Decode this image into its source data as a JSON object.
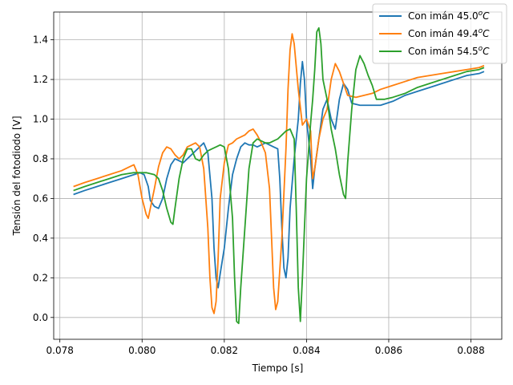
{
  "chart_data": {
    "type": "line",
    "xlabel": "Tiempo [s]",
    "ylabel": "Tensión del fotodiodo [V]",
    "xlim": [
      0.07785,
      0.08875
    ],
    "ylim": [
      -0.11,
      1.54
    ],
    "grid": true,
    "legend_position": "top-right",
    "x_ticks": [
      0.078,
      0.08,
      0.082,
      0.084,
      0.086,
      0.088
    ],
    "x_tick_labels": [
      "0.078",
      "0.080",
      "0.082",
      "0.084",
      "0.086",
      "0.088"
    ],
    "y_ticks": [
      0.0,
      0.2,
      0.4,
      0.6,
      0.8,
      1.0,
      1.2,
      1.4
    ],
    "y_tick_labels": [
      "0.0",
      "0.2",
      "0.4",
      "0.6",
      "0.8",
      "1.0",
      "1.2",
      "1.4"
    ],
    "series": [
      {
        "name": "Con imán 45.0",
        "name_sup": "o",
        "name_unit": "C",
        "color": "#1f77b4",
        "points": [
          [
            0.07833,
            0.62
          ],
          [
            0.0786,
            0.64
          ],
          [
            0.0789,
            0.66
          ],
          [
            0.0792,
            0.68
          ],
          [
            0.0795,
            0.7
          ],
          [
            0.0798,
            0.72
          ],
          [
            0.07995,
            0.73
          ],
          [
            0.08005,
            0.72
          ],
          [
            0.08015,
            0.66
          ],
          [
            0.0802,
            0.59
          ],
          [
            0.0803,
            0.56
          ],
          [
            0.0804,
            0.55
          ],
          [
            0.0805,
            0.6
          ],
          [
            0.0806,
            0.7
          ],
          [
            0.0807,
            0.77
          ],
          [
            0.0808,
            0.8
          ],
          [
            0.0809,
            0.79
          ],
          [
            0.081,
            0.78
          ],
          [
            0.0811,
            0.8
          ],
          [
            0.0812,
            0.82
          ],
          [
            0.0813,
            0.84
          ],
          [
            0.0814,
            0.86
          ],
          [
            0.0815,
            0.88
          ],
          [
            0.0816,
            0.83
          ],
          [
            0.0817,
            0.6
          ],
          [
            0.08175,
            0.35
          ],
          [
            0.0818,
            0.2
          ],
          [
            0.08185,
            0.15
          ],
          [
            0.0819,
            0.22
          ],
          [
            0.082,
            0.35
          ],
          [
            0.0821,
            0.55
          ],
          [
            0.0822,
            0.72
          ],
          [
            0.0823,
            0.8
          ],
          [
            0.0824,
            0.86
          ],
          [
            0.0825,
            0.88
          ],
          [
            0.0826,
            0.87
          ],
          [
            0.0827,
            0.87
          ],
          [
            0.0828,
            0.86
          ],
          [
            0.0829,
            0.87
          ],
          [
            0.083,
            0.88
          ],
          [
            0.0831,
            0.87
          ],
          [
            0.0832,
            0.86
          ],
          [
            0.0833,
            0.85
          ],
          [
            0.08335,
            0.7
          ],
          [
            0.0834,
            0.45
          ],
          [
            0.08345,
            0.25
          ],
          [
            0.0835,
            0.2
          ],
          [
            0.08355,
            0.3
          ],
          [
            0.0836,
            0.55
          ],
          [
            0.0837,
            0.8
          ],
          [
            0.0838,
            1.0
          ],
          [
            0.08385,
            1.18
          ],
          [
            0.0839,
            1.29
          ],
          [
            0.08395,
            1.2
          ],
          [
            0.084,
            1.0
          ],
          [
            0.0841,
            0.8
          ],
          [
            0.08415,
            0.65
          ],
          [
            0.0842,
            0.75
          ],
          [
            0.0843,
            0.9
          ],
          [
            0.0844,
            1.05
          ],
          [
            0.0845,
            1.1
          ],
          [
            0.0846,
            1.0
          ],
          [
            0.0847,
            0.95
          ],
          [
            0.0848,
            1.1
          ],
          [
            0.0849,
            1.18
          ],
          [
            0.085,
            1.15
          ],
          [
            0.0851,
            1.08
          ],
          [
            0.0853,
            1.07
          ],
          [
            0.0855,
            1.07
          ],
          [
            0.0858,
            1.07
          ],
          [
            0.0861,
            1.09
          ],
          [
            0.0864,
            1.12
          ],
          [
            0.0867,
            1.14
          ],
          [
            0.087,
            1.16
          ],
          [
            0.0873,
            1.18
          ],
          [
            0.0876,
            1.2
          ],
          [
            0.0879,
            1.22
          ],
          [
            0.0882,
            1.23
          ],
          [
            0.08832,
            1.24
          ]
        ]
      },
      {
        "name": "Con imán 49.4",
        "name_sup": "o",
        "name_unit": "C",
        "color": "#ff7f0e",
        "points": [
          [
            0.07833,
            0.66
          ],
          [
            0.0786,
            0.68
          ],
          [
            0.0789,
            0.7
          ],
          [
            0.0792,
            0.72
          ],
          [
            0.0795,
            0.74
          ],
          [
            0.0797,
            0.76
          ],
          [
            0.0798,
            0.77
          ],
          [
            0.0799,
            0.72
          ],
          [
            0.08,
            0.6
          ],
          [
            0.0801,
            0.52
          ],
          [
            0.08015,
            0.5
          ],
          [
            0.0802,
            0.55
          ],
          [
            0.0803,
            0.65
          ],
          [
            0.0804,
            0.76
          ],
          [
            0.0805,
            0.83
          ],
          [
            0.0806,
            0.86
          ],
          [
            0.0807,
            0.85
          ],
          [
            0.0808,
            0.82
          ],
          [
            0.0809,
            0.8
          ],
          [
            0.081,
            0.82
          ],
          [
            0.0811,
            0.86
          ],
          [
            0.0812,
            0.87
          ],
          [
            0.0813,
            0.88
          ],
          [
            0.0814,
            0.86
          ],
          [
            0.0815,
            0.75
          ],
          [
            0.0816,
            0.45
          ],
          [
            0.08165,
            0.2
          ],
          [
            0.0817,
            0.05
          ],
          [
            0.08175,
            0.02
          ],
          [
            0.0818,
            0.08
          ],
          [
            0.08185,
            0.3
          ],
          [
            0.0819,
            0.6
          ],
          [
            0.082,
            0.78
          ],
          [
            0.0821,
            0.87
          ],
          [
            0.0822,
            0.88
          ],
          [
            0.0823,
            0.9
          ],
          [
            0.0824,
            0.91
          ],
          [
            0.0825,
            0.92
          ],
          [
            0.0826,
            0.94
          ],
          [
            0.0827,
            0.95
          ],
          [
            0.0828,
            0.92
          ],
          [
            0.0829,
            0.88
          ],
          [
            0.083,
            0.83
          ],
          [
            0.0831,
            0.65
          ],
          [
            0.08315,
            0.4
          ],
          [
            0.0832,
            0.15
          ],
          [
            0.08325,
            0.04
          ],
          [
            0.0833,
            0.08
          ],
          [
            0.0834,
            0.4
          ],
          [
            0.0835,
            0.85
          ],
          [
            0.08355,
            1.15
          ],
          [
            0.0836,
            1.35
          ],
          [
            0.08365,
            1.43
          ],
          [
            0.0837,
            1.38
          ],
          [
            0.0838,
            1.15
          ],
          [
            0.0839,
            0.97
          ],
          [
            0.084,
            1.0
          ],
          [
            0.0841,
            0.94
          ],
          [
            0.08415,
            0.7
          ],
          [
            0.0842,
            0.75
          ],
          [
            0.0843,
            0.9
          ],
          [
            0.0844,
            1.0
          ],
          [
            0.0845,
            1.05
          ],
          [
            0.0846,
            1.2
          ],
          [
            0.0847,
            1.28
          ],
          [
            0.0848,
            1.24
          ],
          [
            0.0849,
            1.18
          ],
          [
            0.085,
            1.12
          ],
          [
            0.0852,
            1.11
          ],
          [
            0.0854,
            1.12
          ],
          [
            0.0856,
            1.13
          ],
          [
            0.0858,
            1.15
          ],
          [
            0.0861,
            1.17
          ],
          [
            0.0864,
            1.19
          ],
          [
            0.0867,
            1.21
          ],
          [
            0.087,
            1.22
          ],
          [
            0.0873,
            1.23
          ],
          [
            0.0876,
            1.24
          ],
          [
            0.0879,
            1.25
          ],
          [
            0.0882,
            1.26
          ],
          [
            0.08832,
            1.27
          ]
        ]
      },
      {
        "name": "Con imán 54.5",
        "name_sup": "o",
        "name_unit": "C",
        "color": "#2ca02c",
        "points": [
          [
            0.07833,
            0.64
          ],
          [
            0.0786,
            0.66
          ],
          [
            0.0789,
            0.68
          ],
          [
            0.0792,
            0.7
          ],
          [
            0.0795,
            0.72
          ],
          [
            0.0798,
            0.73
          ],
          [
            0.0801,
            0.73
          ],
          [
            0.0803,
            0.72
          ],
          [
            0.0804,
            0.7
          ],
          [
            0.0805,
            0.64
          ],
          [
            0.0806,
            0.55
          ],
          [
            0.0807,
            0.48
          ],
          [
            0.08075,
            0.47
          ],
          [
            0.0808,
            0.55
          ],
          [
            0.0809,
            0.7
          ],
          [
            0.081,
            0.8
          ],
          [
            0.0811,
            0.85
          ],
          [
            0.0812,
            0.85
          ],
          [
            0.0813,
            0.8
          ],
          [
            0.0814,
            0.79
          ],
          [
            0.0815,
            0.82
          ],
          [
            0.0816,
            0.84
          ],
          [
            0.0817,
            0.85
          ],
          [
            0.0818,
            0.86
          ],
          [
            0.0819,
            0.87
          ],
          [
            0.082,
            0.86
          ],
          [
            0.0821,
            0.75
          ],
          [
            0.0822,
            0.5
          ],
          [
            0.08225,
            0.2
          ],
          [
            0.0823,
            -0.02
          ],
          [
            0.08235,
            -0.03
          ],
          [
            0.0824,
            0.15
          ],
          [
            0.0825,
            0.45
          ],
          [
            0.0826,
            0.75
          ],
          [
            0.0827,
            0.88
          ],
          [
            0.0828,
            0.9
          ],
          [
            0.0829,
            0.89
          ],
          [
            0.083,
            0.88
          ],
          [
            0.0831,
            0.88
          ],
          [
            0.0832,
            0.89
          ],
          [
            0.0833,
            0.9
          ],
          [
            0.0834,
            0.92
          ],
          [
            0.0835,
            0.94
          ],
          [
            0.0836,
            0.95
          ],
          [
            0.0837,
            0.9
          ],
          [
            0.08375,
            0.55
          ],
          [
            0.0838,
            0.15
          ],
          [
            0.08385,
            -0.02
          ],
          [
            0.0839,
            0.2
          ],
          [
            0.084,
            0.7
          ],
          [
            0.0841,
            0.98
          ],
          [
            0.08415,
            1.1
          ],
          [
            0.0842,
            1.25
          ],
          [
            0.08425,
            1.44
          ],
          [
            0.0843,
            1.46
          ],
          [
            0.08435,
            1.38
          ],
          [
            0.0844,
            1.2
          ],
          [
            0.0845,
            1.1
          ],
          [
            0.0846,
            0.95
          ],
          [
            0.0847,
            0.85
          ],
          [
            0.0848,
            0.72
          ],
          [
            0.0849,
            0.62
          ],
          [
            0.08495,
            0.6
          ],
          [
            0.085,
            0.78
          ],
          [
            0.0851,
            1.05
          ],
          [
            0.0852,
            1.25
          ],
          [
            0.0853,
            1.32
          ],
          [
            0.0854,
            1.28
          ],
          [
            0.0855,
            1.22
          ],
          [
            0.0856,
            1.17
          ],
          [
            0.0857,
            1.1
          ],
          [
            0.0859,
            1.1
          ],
          [
            0.0861,
            1.11
          ],
          [
            0.0864,
            1.13
          ],
          [
            0.0867,
            1.16
          ],
          [
            0.087,
            1.18
          ],
          [
            0.0873,
            1.2
          ],
          [
            0.0876,
            1.22
          ],
          [
            0.0879,
            1.24
          ],
          [
            0.0882,
            1.25
          ],
          [
            0.08832,
            1.26
          ]
        ]
      }
    ]
  }
}
